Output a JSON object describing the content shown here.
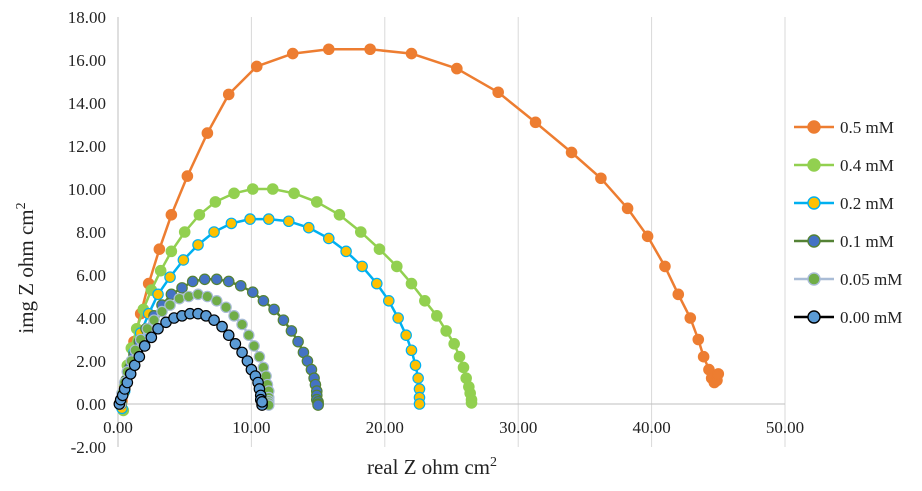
{
  "chart_data": {
    "type": "scatter",
    "title": "",
    "xlabel": "real Z ohm cm",
    "xlabel_sup": "2",
    "ylabel": "img  Z ohm cm",
    "ylabel_sup": "2",
    "xlim": [
      0,
      50
    ],
    "ylim": [
      -2,
      18
    ],
    "x_ticks": [
      0,
      10,
      20,
      30,
      40,
      50
    ],
    "x_tick_labels": [
      "0.00",
      "10.00",
      "20.00",
      "30.00",
      "40.00",
      "50.00"
    ],
    "y_ticks": [
      -2,
      0,
      2,
      4,
      6,
      8,
      10,
      12,
      14,
      16,
      18
    ],
    "y_tick_labels": [
      "-2.00",
      "0.00",
      "2.00",
      "4.00",
      "6.00",
      "8.00",
      "10.00",
      "12.00",
      "14.00",
      "16.00",
      "18.00"
    ],
    "grid": "vertical",
    "legend_position": "right",
    "series": [
      {
        "name": "0.5 mM",
        "line_color": "#ed7d31",
        "marker_color": "#ed7d31",
        "marker_edge": "#ed7d31",
        "x": [
          0.3,
          0.5,
          0.8,
          1.2,
          1.7,
          2.3,
          3.1,
          4.0,
          5.2,
          6.7,
          8.3,
          10.4,
          13.1,
          15.8,
          18.9,
          22.0,
          25.4,
          28.5,
          31.3,
          34.0,
          36.2,
          38.2,
          39.7,
          41.0,
          42.0,
          42.9,
          43.5,
          43.9,
          44.3,
          44.5,
          44.7,
          44.9,
          45.0
        ],
        "y": [
          0.15,
          0.8,
          1.7,
          2.9,
          4.2,
          5.6,
          7.2,
          8.8,
          10.6,
          12.6,
          14.4,
          15.7,
          16.3,
          16.5,
          16.5,
          16.3,
          15.6,
          14.5,
          13.1,
          11.7,
          10.5,
          9.1,
          7.8,
          6.4,
          5.1,
          4.0,
          3.0,
          2.2,
          1.6,
          1.2,
          1.0,
          1.1,
          1.4
        ]
      },
      {
        "name": "0.4 mM",
        "line_color": "#92d050",
        "marker_color": "#92d050",
        "marker_edge": "#92d050",
        "x": [
          0.4,
          0.5,
          0.7,
          1.0,
          1.4,
          1.9,
          2.5,
          3.2,
          4.0,
          5.0,
          6.1,
          7.3,
          8.7,
          10.1,
          11.6,
          13.2,
          14.9,
          16.6,
          18.2,
          19.6,
          20.9,
          22.0,
          23.0,
          23.9,
          24.6,
          25.2,
          25.6,
          25.9,
          26.1,
          26.3,
          26.4,
          26.5,
          26.5
        ],
        "y": [
          -0.3,
          0.9,
          1.8,
          2.6,
          3.5,
          4.4,
          5.3,
          6.2,
          7.1,
          8.0,
          8.8,
          9.4,
          9.8,
          10.0,
          10.0,
          9.8,
          9.4,
          8.8,
          8.0,
          7.2,
          6.4,
          5.6,
          4.8,
          4.1,
          3.4,
          2.8,
          2.2,
          1.7,
          1.2,
          0.8,
          0.5,
          0.2,
          0.05
        ]
      },
      {
        "name": "0.2 mM",
        "line_color": "#00b0f0",
        "marker_color": "#ffc000",
        "marker_edge": "#00b0f0",
        "x": [
          0.3,
          0.5,
          0.8,
          1.2,
          1.7,
          2.3,
          3.0,
          3.9,
          4.9,
          6.0,
          7.2,
          8.5,
          9.9,
          11.3,
          12.8,
          14.3,
          15.8,
          17.1,
          18.3,
          19.4,
          20.3,
          21.0,
          21.6,
          22.0,
          22.3,
          22.5,
          22.6,
          22.6,
          22.6
        ],
        "y": [
          -0.2,
          0.6,
          1.5,
          2.4,
          3.3,
          4.2,
          5.1,
          5.9,
          6.7,
          7.4,
          8.0,
          8.4,
          8.6,
          8.6,
          8.5,
          8.2,
          7.7,
          7.1,
          6.4,
          5.6,
          4.8,
          4.0,
          3.2,
          2.5,
          1.8,
          1.2,
          0.7,
          0.3,
          0.0
        ]
      },
      {
        "name": "0.1 mM",
        "line_color": "#548235",
        "marker_color": "#4472c4",
        "marker_edge": "#548235",
        "x": [
          0.25,
          0.4,
          0.6,
          0.9,
          1.2,
          1.6,
          2.1,
          2.7,
          3.3,
          4.0,
          4.8,
          5.6,
          6.5,
          7.4,
          8.3,
          9.2,
          10.1,
          10.9,
          11.7,
          12.4,
          13.0,
          13.5,
          13.9,
          14.2,
          14.5,
          14.7,
          14.8,
          14.9,
          14.9,
          14.9,
          15.0,
          15.0,
          15.0
        ],
        "y": [
          0.0,
          0.5,
          1.1,
          1.7,
          2.3,
          2.9,
          3.5,
          4.1,
          4.6,
          5.1,
          5.4,
          5.7,
          5.8,
          5.8,
          5.7,
          5.5,
          5.2,
          4.8,
          4.4,
          3.9,
          3.4,
          2.9,
          2.4,
          2.0,
          1.6,
          1.2,
          0.9,
          0.6,
          0.4,
          0.2,
          0.1,
          0.0,
          -0.05
        ]
      },
      {
        "name": "0.05 mM",
        "line_color": "#a9bcd6",
        "marker_color": "#70ad47",
        "marker_edge": "#a9bcd6",
        "x": [
          0.2,
          0.3,
          0.5,
          0.7,
          1.0,
          1.3,
          1.7,
          2.2,
          2.7,
          3.3,
          3.9,
          4.6,
          5.3,
          6.0,
          6.7,
          7.4,
          8.1,
          8.7,
          9.3,
          9.8,
          10.2,
          10.6,
          10.9,
          11.1,
          11.2,
          11.3,
          11.3,
          11.3,
          11.3,
          11.3
        ],
        "y": [
          0.0,
          0.5,
          1.0,
          1.5,
          2.0,
          2.5,
          3.0,
          3.5,
          3.9,
          4.3,
          4.6,
          4.9,
          5.0,
          5.1,
          5.0,
          4.8,
          4.5,
          4.1,
          3.7,
          3.2,
          2.7,
          2.2,
          1.7,
          1.3,
          0.9,
          0.6,
          0.3,
          0.15,
          0.05,
          -0.05
        ]
      },
      {
        "name": "0.00 mM",
        "line_color": "#000000",
        "marker_color": "#5b9bd5",
        "marker_edge": "#000000",
        "x": [
          0.1,
          0.2,
          0.35,
          0.5,
          0.7,
          0.95,
          1.25,
          1.6,
          2.0,
          2.5,
          3.0,
          3.6,
          4.2,
          4.8,
          5.4,
          6.0,
          6.6,
          7.2,
          7.8,
          8.3,
          8.8,
          9.3,
          9.7,
          10.0,
          10.3,
          10.5,
          10.6,
          10.7,
          10.7,
          10.8,
          10.8,
          10.8
        ],
        "y": [
          0.0,
          0.2,
          0.4,
          0.7,
          1.0,
          1.4,
          1.8,
          2.2,
          2.7,
          3.1,
          3.5,
          3.8,
          4.0,
          4.1,
          4.2,
          4.2,
          4.1,
          3.9,
          3.6,
          3.2,
          2.8,
          2.4,
          2.0,
          1.6,
          1.3,
          1.0,
          0.7,
          0.4,
          0.2,
          0.05,
          -0.05,
          0.1
        ]
      }
    ]
  }
}
